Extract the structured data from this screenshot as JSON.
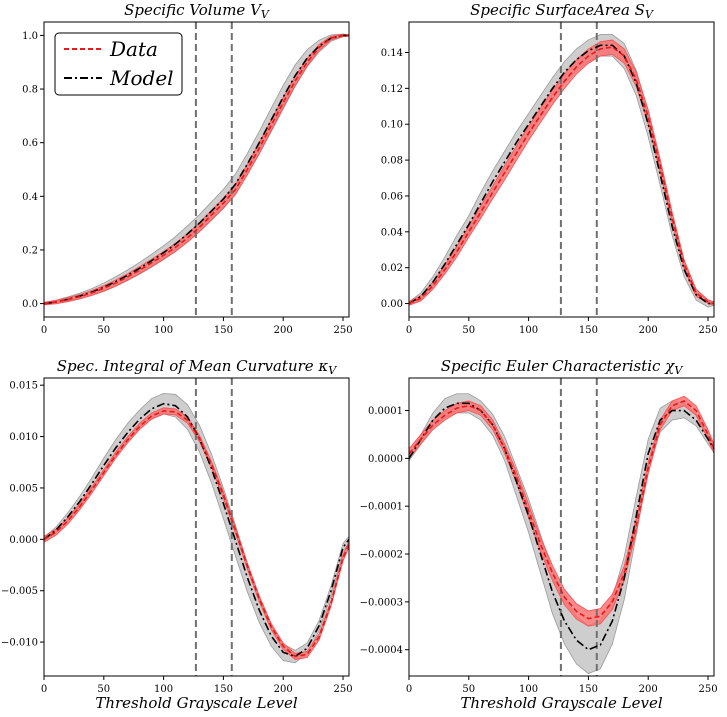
{
  "figure": {
    "xlabel": "Threshold Grayscale Level",
    "colors": {
      "data": "#e41a1c",
      "data_band": "#ff6b6b",
      "model": "#000000",
      "model_band": "#bdbdbd",
      "threshold": "#707070"
    }
  },
  "chart_data": [
    {
      "type": "line",
      "title": "Specific Volume V",
      "title_sub": "V",
      "xlabel": "",
      "ylabel": "",
      "xlim": [
        0,
        255
      ],
      "ylim": [
        -0.05,
        1.05
      ],
      "xticks": [
        0,
        50,
        100,
        150,
        200,
        250
      ],
      "yticks": [
        0.0,
        0.2,
        0.4,
        0.6,
        0.8,
        1.0
      ],
      "ytick_labels": [
        "0.0",
        "0.2",
        "0.4",
        "0.6",
        "0.8",
        "1.0"
      ],
      "vlines": [
        127,
        157
      ],
      "legend": {
        "placement": "top-left",
        "entries": [
          "Data",
          "Model"
        ]
      },
      "x": [
        0,
        10,
        20,
        30,
        40,
        50,
        60,
        70,
        80,
        90,
        100,
        110,
        120,
        130,
        140,
        150,
        160,
        170,
        180,
        190,
        200,
        210,
        220,
        230,
        240,
        250,
        255
      ],
      "series": [
        {
          "name": "Data",
          "values": [
            0.0,
            0.006,
            0.015,
            0.026,
            0.04,
            0.057,
            0.077,
            0.1,
            0.125,
            0.152,
            0.18,
            0.21,
            0.245,
            0.285,
            0.33,
            0.375,
            0.425,
            0.5,
            0.58,
            0.665,
            0.75,
            0.83,
            0.9,
            0.955,
            0.99,
            1.0,
            1.0
          ],
          "band": [
            0.005,
            0.006,
            0.007,
            0.008,
            0.009,
            0.01,
            0.011,
            0.012,
            0.013,
            0.014,
            0.014,
            0.015,
            0.016,
            0.017,
            0.018,
            0.018,
            0.019,
            0.02,
            0.02,
            0.02,
            0.019,
            0.017,
            0.014,
            0.011,
            0.007,
            0.004,
            0.003
          ]
        },
        {
          "name": "Model",
          "values": [
            0.0,
            0.006,
            0.016,
            0.028,
            0.043,
            0.061,
            0.082,
            0.106,
            0.132,
            0.16,
            0.19,
            0.222,
            0.26,
            0.3,
            0.345,
            0.39,
            0.445,
            0.52,
            0.6,
            0.685,
            0.77,
            0.85,
            0.915,
            0.96,
            0.99,
            1.0,
            1.0
          ],
          "band": [
            0.004,
            0.007,
            0.009,
            0.011,
            0.013,
            0.016,
            0.018,
            0.02,
            0.022,
            0.024,
            0.026,
            0.028,
            0.03,
            0.032,
            0.034,
            0.036,
            0.038,
            0.04,
            0.042,
            0.044,
            0.044,
            0.04,
            0.032,
            0.022,
            0.012,
            0.005,
            0.003
          ]
        }
      ]
    },
    {
      "type": "line",
      "title": "Specific SurfaceArea S",
      "title_sub": "V",
      "xlabel": "",
      "ylabel": "",
      "xlim": [
        0,
        255
      ],
      "ylim": [
        -0.0075,
        0.157
      ],
      "xticks": [
        0,
        50,
        100,
        150,
        200,
        250
      ],
      "yticks": [
        0.0,
        0.02,
        0.04,
        0.06,
        0.08,
        0.1,
        0.12,
        0.14
      ],
      "ytick_labels": [
        "0.00",
        "0.02",
        "0.04",
        "0.06",
        "0.08",
        "0.10",
        "0.12",
        "0.14"
      ],
      "vlines": [
        127,
        157
      ],
      "legend": null,
      "x": [
        0,
        10,
        20,
        30,
        40,
        50,
        60,
        70,
        80,
        90,
        100,
        110,
        120,
        130,
        140,
        150,
        160,
        170,
        180,
        190,
        200,
        210,
        220,
        230,
        240,
        250,
        255
      ],
      "series": [
        {
          "name": "Data",
          "values": [
            0.0,
            0.003,
            0.01,
            0.019,
            0.029,
            0.04,
            0.051,
            0.062,
            0.073,
            0.084,
            0.095,
            0.105,
            0.115,
            0.124,
            0.132,
            0.138,
            0.142,
            0.143,
            0.138,
            0.125,
            0.104,
            0.077,
            0.048,
            0.022,
            0.006,
            0.001,
            0.0
          ],
          "band": [
            0.001,
            0.0015,
            0.002,
            0.0025,
            0.003,
            0.003,
            0.0035,
            0.0035,
            0.004,
            0.004,
            0.004,
            0.004,
            0.004,
            0.004,
            0.004,
            0.004,
            0.004,
            0.004,
            0.004,
            0.004,
            0.004,
            0.0035,
            0.003,
            0.0025,
            0.002,
            0.001,
            0.001
          ]
        },
        {
          "name": "Model",
          "values": [
            0.0,
            0.004,
            0.012,
            0.022,
            0.033,
            0.044,
            0.056,
            0.068,
            0.079,
            0.09,
            0.1,
            0.11,
            0.12,
            0.129,
            0.136,
            0.141,
            0.144,
            0.144,
            0.138,
            0.123,
            0.1,
            0.072,
            0.043,
            0.019,
            0.005,
            0.0,
            0.0
          ],
          "band": [
            0.001,
            0.002,
            0.003,
            0.004,
            0.005,
            0.005,
            0.006,
            0.006,
            0.006,
            0.006,
            0.006,
            0.006,
            0.006,
            0.006,
            0.006,
            0.006,
            0.006,
            0.006,
            0.007,
            0.007,
            0.007,
            0.006,
            0.005,
            0.004,
            0.003,
            0.002,
            0.001
          ]
        }
      ]
    },
    {
      "type": "line",
      "title": "Spec. Integral of Mean Curvature κ",
      "title_sub": "V",
      "xlabel": "Threshold Grayscale Level",
      "ylabel": "",
      "xlim": [
        0,
        255
      ],
      "ylim": [
        -0.0133,
        0.0157
      ],
      "xticks": [
        0,
        50,
        100,
        150,
        200,
        250
      ],
      "yticks": [
        -0.01,
        -0.005,
        0.0,
        0.005,
        0.01,
        0.015
      ],
      "ytick_labels": [
        "−0.010",
        "−0.005",
        "0.000",
        "0.005",
        "0.010",
        "0.015"
      ],
      "vlines": [
        127,
        157
      ],
      "legend": null,
      "x": [
        0,
        10,
        20,
        30,
        40,
        50,
        60,
        70,
        80,
        90,
        100,
        110,
        120,
        130,
        140,
        150,
        160,
        170,
        180,
        190,
        200,
        210,
        220,
        230,
        240,
        250,
        255
      ],
      "series": [
        {
          "name": "Data",
          "values": [
            0.0,
            0.0007,
            0.0018,
            0.0032,
            0.0048,
            0.0065,
            0.0082,
            0.0097,
            0.011,
            0.012,
            0.0125,
            0.0124,
            0.0116,
            0.0098,
            0.0073,
            0.0043,
            0.0009,
            -0.0026,
            -0.0058,
            -0.0085,
            -0.0104,
            -0.0114,
            -0.0112,
            -0.0095,
            -0.0062,
            -0.0018,
            -0.0005
          ],
          "band": [
            0.0003,
            0.0003,
            0.0003,
            0.0003,
            0.0003,
            0.0003,
            0.0003,
            0.0003,
            0.0003,
            0.0003,
            0.0003,
            0.0003,
            0.0003,
            0.0003,
            0.0003,
            0.0003,
            0.0003,
            0.0003,
            0.0003,
            0.0003,
            0.0003,
            0.0003,
            0.0003,
            0.0003,
            0.0003,
            0.0003,
            0.0003
          ]
        },
        {
          "name": "Model",
          "values": [
            0.0,
            0.0009,
            0.0022,
            0.0037,
            0.0054,
            0.0072,
            0.0089,
            0.0104,
            0.0117,
            0.0127,
            0.0132,
            0.013,
            0.0119,
            0.0098,
            0.0069,
            0.0035,
            -0.0001,
            -0.0037,
            -0.0069,
            -0.0094,
            -0.011,
            -0.0114,
            -0.0106,
            -0.0084,
            -0.005,
            -0.0008,
            0.0
          ],
          "band": [
            0.0002,
            0.0003,
            0.0004,
            0.0005,
            0.0006,
            0.0007,
            0.0008,
            0.0009,
            0.0009,
            0.001,
            0.001,
            0.0011,
            0.0012,
            0.0013,
            0.0014,
            0.0015,
            0.0015,
            0.0014,
            0.0012,
            0.001,
            0.0008,
            0.0006,
            0.0005,
            0.0005,
            0.0005,
            0.0004,
            0.0003
          ]
        }
      ]
    },
    {
      "type": "line",
      "title": "Specific Euler Characteristic χ",
      "title_sub": "V",
      "xlabel": "Threshold Grayscale Level",
      "ylabel": "",
      "xlim": [
        0,
        255
      ],
      "ylim": [
        -0.000455,
        0.000168
      ],
      "xticks": [
        0,
        50,
        100,
        150,
        200,
        250
      ],
      "yticks": [
        -0.0004,
        -0.0003,
        -0.0002,
        -0.0001,
        0.0,
        0.0001
      ],
      "ytick_labels": [
        "−0.0004",
        "−0.0003",
        "−0.0002",
        "−0.0001",
        "0.0000",
        "0.0001"
      ],
      "vlines": [
        127,
        157
      ],
      "legend": null,
      "x": [
        0,
        10,
        20,
        30,
        40,
        50,
        60,
        70,
        80,
        90,
        100,
        110,
        120,
        130,
        140,
        150,
        160,
        170,
        180,
        190,
        200,
        210,
        220,
        230,
        240,
        250,
        255
      ],
      "series": [
        {
          "name": "Data",
          "values": [
            1e-05,
            4e-05,
            7e-05,
            9e-05,
            0.000105,
            0.00011,
            0.0001,
            7e-05,
            2e-05,
            -4e-05,
            -0.00011,
            -0.00018,
            -0.00024,
            -0.00029,
            -0.00032,
            -0.000335,
            -0.00033,
            -0.0003,
            -0.00024,
            -0.00014,
            -2e-05,
            7e-05,
            0.00011,
            0.00012,
            0.0001,
            5e-05,
            2e-05
          ],
          "band": [
            1e-05,
            1e-05,
            1e-05,
            1e-05,
            1e-05,
            1e-05,
            1e-05,
            1e-05,
            1e-05,
            1.2e-05,
            1.4e-05,
            1.5e-05,
            1.6e-05,
            1.6e-05,
            1.6e-05,
            1.6e-05,
            1.6e-05,
            1.6e-05,
            1.5e-05,
            1.4e-05,
            1.2e-05,
            1e-05,
            1e-05,
            1e-05,
            1e-05,
            1e-05,
            1e-05
          ]
        },
        {
          "name": "Model",
          "values": [
            0.0,
            4e-05,
            8e-05,
            0.000105,
            0.000115,
            0.000115,
            0.0001,
            7e-05,
            2e-05,
            -5e-05,
            -0.00012,
            -0.0002,
            -0.00028,
            -0.00034,
            -0.00038,
            -0.0004,
            -0.00039,
            -0.00034,
            -0.00025,
            -0.00012,
            1e-05,
            8e-05,
            0.0001,
            0.0001,
            8e-05,
            4e-05,
            2e-05
          ],
          "band": [
            5e-06,
            1e-05,
            1.5e-05,
            2e-05,
            2e-05,
            2e-05,
            2e-05,
            2.2e-05,
            2.5e-05,
            3e-05,
            3.5e-05,
            4e-05,
            4.5e-05,
            4.8e-05,
            5e-05,
            5e-05,
            5e-05,
            4.8e-05,
            4.5e-05,
            4e-05,
            3e-05,
            2.5e-05,
            2e-05,
            1.5e-05,
            1.2e-05,
            1e-05,
            8e-06
          ]
        }
      ]
    }
  ]
}
